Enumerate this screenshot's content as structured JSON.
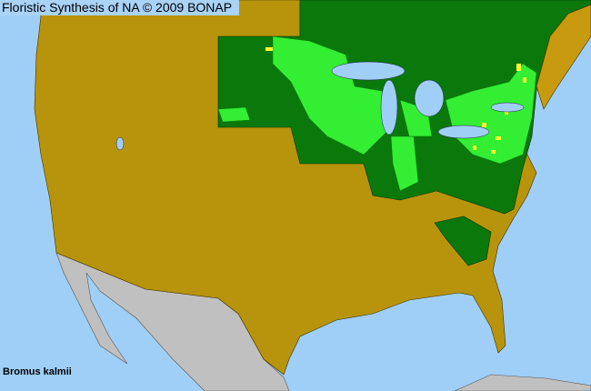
{
  "header": {
    "title": "Floristic Synthesis of NA © 2009 BONAP"
  },
  "map": {
    "species": "Bromus kalmii",
    "colors": {
      "water": "#9fcff7",
      "absent": "#b8940c",
      "present_state": "#0a780a",
      "present_county": "#33ee33",
      "rare_county": "#ffff33",
      "no_data": "#c0c0c0",
      "boundaries": "#333300"
    }
  }
}
